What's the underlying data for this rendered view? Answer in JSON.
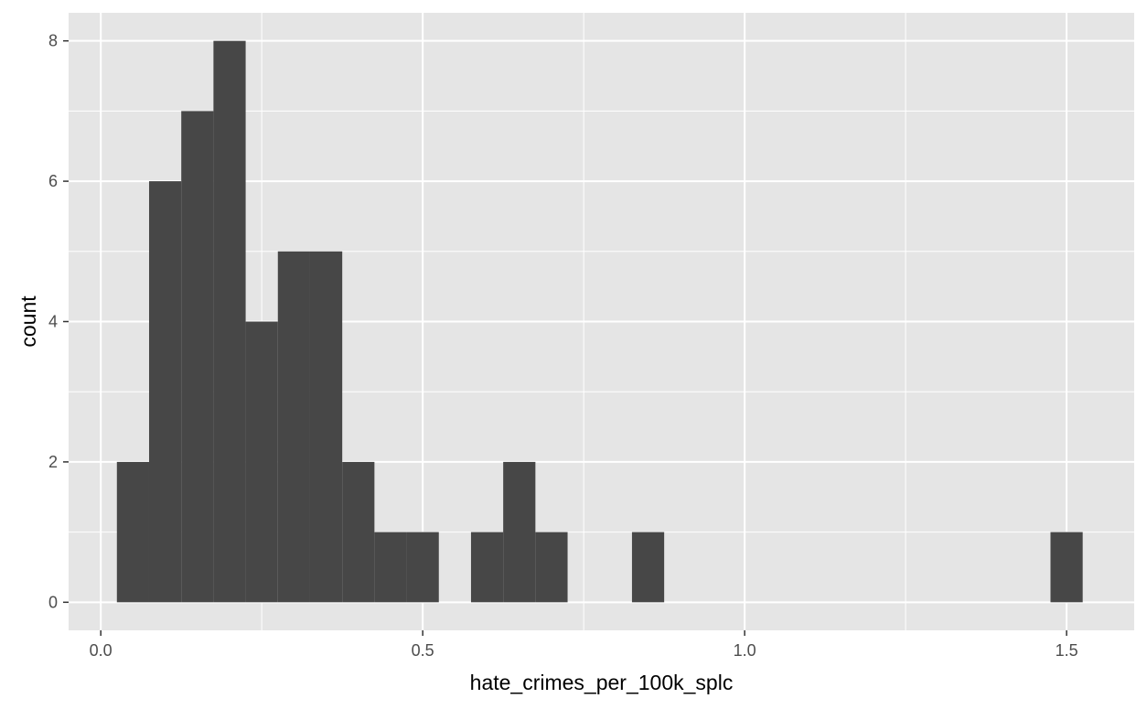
{
  "chart_data": {
    "type": "bar",
    "subtype": "histogram",
    "title": "",
    "xlabel": "hate_crimes_per_100k_splc",
    "ylabel": "count",
    "xlim": [
      -0.05,
      1.605
    ],
    "ylim": [
      -0.4,
      8.4
    ],
    "x_ticks": [
      {
        "value": 0.0,
        "label": "0.0"
      },
      {
        "value": 0.5,
        "label": "0.5"
      },
      {
        "value": 1.0,
        "label": "1.0"
      },
      {
        "value": 1.5,
        "label": "1.5"
      }
    ],
    "y_ticks": [
      {
        "value": 0,
        "label": "0"
      },
      {
        "value": 2,
        "label": "2"
      },
      {
        "value": 4,
        "label": "4"
      },
      {
        "value": 6,
        "label": "6"
      },
      {
        "value": 8,
        "label": "8"
      }
    ],
    "bins": [
      {
        "x0": 0.025,
        "x1": 0.075,
        "count": 2
      },
      {
        "x0": 0.075,
        "x1": 0.125,
        "count": 6
      },
      {
        "x0": 0.125,
        "x1": 0.175,
        "count": 7
      },
      {
        "x0": 0.175,
        "x1": 0.225,
        "count": 8
      },
      {
        "x0": 0.225,
        "x1": 0.275,
        "count": 4
      },
      {
        "x0": 0.275,
        "x1": 0.325,
        "count": 5
      },
      {
        "x0": 0.325,
        "x1": 0.375,
        "count": 5
      },
      {
        "x0": 0.375,
        "x1": 0.425,
        "count": 2
      },
      {
        "x0": 0.425,
        "x1": 0.475,
        "count": 1
      },
      {
        "x0": 0.475,
        "x1": 0.525,
        "count": 1
      },
      {
        "x0": 0.525,
        "x1": 0.575,
        "count": 0
      },
      {
        "x0": 0.575,
        "x1": 0.625,
        "count": 1
      },
      {
        "x0": 0.625,
        "x1": 0.675,
        "count": 2
      },
      {
        "x0": 0.675,
        "x1": 0.725,
        "count": 1
      },
      {
        "x0": 0.825,
        "x1": 0.875,
        "count": 1
      },
      {
        "x0": 1.475,
        "x1": 1.525,
        "count": 1
      }
    ],
    "grid": true,
    "colors": {
      "panel": "#e5e5e5",
      "grid": "#ffffff",
      "bar": "#474747",
      "tick_text": "#4d4d4d",
      "tick_mark": "#333333"
    }
  }
}
